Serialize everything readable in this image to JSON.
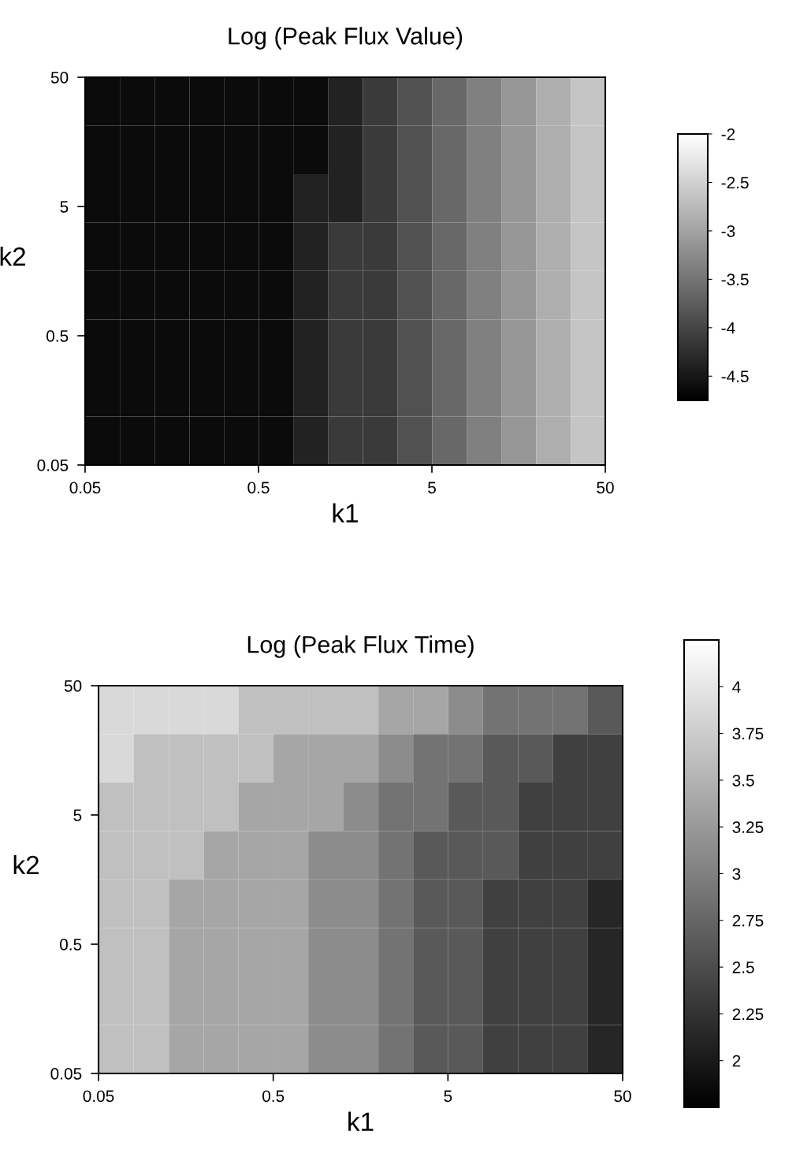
{
  "chart_data": [
    {
      "type": "heatmap",
      "title": "Log (Peak Flux Value)",
      "xlabel": "k1",
      "ylabel": "k2",
      "log": "xy",
      "xlim": [
        0.05,
        50
      ],
      "ylim": [
        0.05,
        50
      ],
      "xticks": [
        0.05,
        0.5,
        5,
        50
      ],
      "yticks": [
        0.05,
        0.5,
        5,
        50
      ],
      "x": [
        0.063,
        0.1,
        0.16,
        0.25,
        0.4,
        0.63,
        1,
        1.6,
        2.5,
        4,
        6.3,
        10,
        16,
        25,
        40
      ],
      "y": [
        32.5,
        13.7,
        5.78,
        2.44,
        1.03,
        0.433,
        0.183,
        0.077
      ],
      "cells": [
        [
          -4.625,
          -4.625,
          -4.625,
          -4.625,
          -4.625,
          -4.625,
          -4.625,
          -4.375,
          -4.125,
          -3.875,
          -3.625,
          -3.375,
          -3.125,
          -2.875,
          -2.625
        ],
        [
          -4.625,
          -4.625,
          -4.625,
          -4.625,
          -4.625,
          -4.625,
          -4.625,
          -4.375,
          -4.125,
          -3.875,
          -3.625,
          -3.375,
          -3.125,
          -2.875,
          -2.625
        ],
        [
          -4.625,
          -4.625,
          -4.625,
          -4.625,
          -4.625,
          -4.625,
          -4.375,
          -4.375,
          -4.125,
          -3.875,
          -3.625,
          -3.375,
          -3.125,
          -2.875,
          -2.625
        ],
        [
          -4.625,
          -4.625,
          -4.625,
          -4.625,
          -4.625,
          -4.625,
          -4.375,
          -4.125,
          -4.125,
          -3.875,
          -3.625,
          -3.375,
          -3.125,
          -2.875,
          -2.625
        ],
        [
          -4.625,
          -4.625,
          -4.625,
          -4.625,
          -4.625,
          -4.625,
          -4.375,
          -4.125,
          -4.125,
          -3.875,
          -3.625,
          -3.375,
          -3.125,
          -2.875,
          -2.625
        ],
        [
          -4.625,
          -4.625,
          -4.625,
          -4.625,
          -4.625,
          -4.625,
          -4.375,
          -4.125,
          -4.125,
          -3.875,
          -3.625,
          -3.375,
          -3.125,
          -2.875,
          -2.625
        ],
        [
          -4.625,
          -4.625,
          -4.625,
          -4.625,
          -4.625,
          -4.625,
          -4.375,
          -4.125,
          -4.125,
          -3.875,
          -3.625,
          -3.375,
          -3.125,
          -2.875,
          -2.625
        ],
        [
          -4.625,
          -4.625,
          -4.625,
          -4.625,
          -4.625,
          -4.625,
          -4.375,
          -4.125,
          -4.125,
          -3.875,
          -3.625,
          -3.375,
          -3.125,
          -2.875,
          -2.625
        ]
      ],
      "clim": [
        -4.75,
        -2
      ],
      "cticks": [
        -4.5,
        -4,
        -3.5,
        -3,
        -2.5,
        -2
      ]
    },
    {
      "type": "heatmap",
      "title": "Log (Peak Flux Time)",
      "xlabel": "k1",
      "ylabel": "k2",
      "log": "xy",
      "xlim": [
        0.05,
        50
      ],
      "ylim": [
        0.05,
        50
      ],
      "xticks": [
        0.05,
        0.5,
        5,
        50
      ],
      "yticks": [
        0.05,
        0.5,
        5,
        50
      ],
      "x": [
        0.063,
        0.1,
        0.16,
        0.25,
        0.4,
        0.63,
        1,
        1.6,
        2.5,
        4,
        6.3,
        10,
        16,
        25,
        40
      ],
      "y": [
        32.5,
        13.7,
        5.78,
        2.44,
        1.03,
        0.433,
        0.183,
        0.077
      ],
      "cells": [
        [
          3.875,
          3.875,
          3.875,
          3.875,
          3.625,
          3.625,
          3.625,
          3.625,
          3.375,
          3.375,
          3.125,
          2.875,
          2.875,
          2.875,
          2.625
        ],
        [
          3.875,
          3.625,
          3.625,
          3.625,
          3.625,
          3.375,
          3.375,
          3.375,
          3.125,
          2.875,
          2.875,
          2.625,
          2.625,
          2.375,
          2.375
        ],
        [
          3.625,
          3.625,
          3.625,
          3.625,
          3.375,
          3.375,
          3.375,
          3.125,
          2.875,
          2.875,
          2.625,
          2.625,
          2.375,
          2.375,
          2.375
        ],
        [
          3.625,
          3.625,
          3.625,
          3.375,
          3.375,
          3.375,
          3.125,
          3.125,
          2.875,
          2.625,
          2.625,
          2.625,
          2.375,
          2.375,
          2.375
        ],
        [
          3.625,
          3.625,
          3.375,
          3.375,
          3.375,
          3.375,
          3.125,
          3.125,
          2.875,
          2.625,
          2.625,
          2.375,
          2.375,
          2.375,
          2.125
        ],
        [
          3.625,
          3.625,
          3.375,
          3.375,
          3.375,
          3.375,
          3.125,
          3.125,
          2.875,
          2.625,
          2.625,
          2.375,
          2.375,
          2.375,
          2.125
        ],
        [
          3.625,
          3.625,
          3.375,
          3.375,
          3.375,
          3.375,
          3.125,
          3.125,
          2.875,
          2.625,
          2.625,
          2.375,
          2.375,
          2.375,
          2.125
        ],
        [
          3.625,
          3.625,
          3.375,
          3.375,
          3.375,
          3.375,
          3.125,
          3.125,
          2.875,
          2.625,
          2.625,
          2.375,
          2.375,
          2.375,
          2.125
        ]
      ],
      "clim": [
        1.75,
        4.25
      ],
      "cticks": [
        2,
        2.25,
        2.5,
        2.75,
        3,
        3.25,
        3.5,
        3.75,
        4
      ]
    }
  ]
}
